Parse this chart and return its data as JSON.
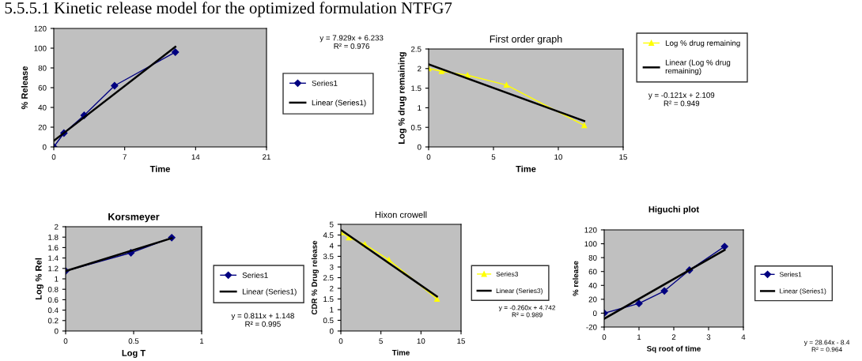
{
  "chart_data": [
    {
      "type": "line",
      "annotations": [
        "5.5.5.1 Kinetic release model for the optimized formulation NTFG7",
        "y = 7.929x + 6.233\nR² = 0.976"
      ],
      "xlabel": "Time",
      "ylabel": "% Release",
      "xlim": [
        0,
        21
      ],
      "xticks": [
        0,
        7,
        14,
        21
      ],
      "ylim": [
        0,
        120
      ],
      "yticks": [
        0,
        20,
        40,
        60,
        80,
        100,
        120
      ],
      "legend": "right",
      "grid": false,
      "series": [
        {
          "name": "Series1",
          "color": "#000080",
          "marker": "diamond",
          "x": [
            0,
            1,
            3,
            6,
            12
          ],
          "values": [
            0,
            14,
            32,
            62,
            96
          ]
        },
        {
          "name": "Linear (Series1)",
          "color": "#000000",
          "marker": "none",
          "x": [
            0,
            12
          ],
          "values": [
            6.2,
            101.4
          ]
        }
      ]
    },
    {
      "type": "line",
      "title": "First order graph",
      "annotations": [
        "y = -0.121x + 2.109\nR² = 0.949"
      ],
      "xlabel": "Time",
      "ylabel": "Log % drug remaining",
      "xlim": [
        0,
        15
      ],
      "xticks": [
        0,
        5,
        10,
        15
      ],
      "ylim": [
        0,
        2.5
      ],
      "yticks": [
        0,
        0.5,
        1,
        1.5,
        2,
        2.5
      ],
      "legend": "top right",
      "grid": false,
      "series": [
        {
          "name": "Log % drug remaining",
          "color": "#ffff00",
          "marker": "triangle",
          "x": [
            0,
            1,
            3,
            6,
            12
          ],
          "values": [
            2.0,
            1.93,
            1.83,
            1.58,
            0.55
          ]
        },
        {
          "name": "Linear (Log % drug\nremaining)",
          "color": "#000000",
          "marker": "none",
          "x": [
            0,
            12
          ],
          "values": [
            2.11,
            0.66
          ]
        }
      ]
    },
    {
      "type": "line",
      "title": "Korsmeyer",
      "annotations": [
        "y = 0.811x + 1.148\nR² = 0.995"
      ],
      "xlabel": "Log T",
      "ylabel": "Log % Rel",
      "xlim": [
        0,
        1
      ],
      "xticks": [
        0,
        0.5,
        1
      ],
      "ylim": [
        0,
        2
      ],
      "yticks": [
        0,
        0.2,
        0.4,
        0.6,
        0.8,
        1,
        1.2,
        1.4,
        1.6,
        1.8,
        2
      ],
      "legend": "right",
      "grid": false,
      "series": [
        {
          "name": "Series1",
          "color": "#000080",
          "marker": "diamond",
          "x": [
            0,
            0.48,
            0.78
          ],
          "values": [
            1.15,
            1.5,
            1.79
          ]
        },
        {
          "name": "Linear (Series1)",
          "color": "#000000",
          "marker": "none",
          "x": [
            0,
            0.78
          ],
          "values": [
            1.15,
            1.78
          ]
        }
      ]
    },
    {
      "type": "line",
      "title": "Hixon crowell",
      "annotations": [
        "y = -0.260x + 4.742\nR² = 0.989"
      ],
      "xlabel": "Time",
      "ylabel": "CDR % Drug release",
      "xlim": [
        0,
        15
      ],
      "xticks": [
        0,
        5,
        10,
        15
      ],
      "ylim": [
        0,
        5
      ],
      "yticks": [
        0,
        0.5,
        1,
        1.5,
        2,
        2.5,
        3,
        3.5,
        4,
        4.5,
        5
      ],
      "legend": "right",
      "grid": false,
      "series": [
        {
          "name": "Series3",
          "color": "#ffff00",
          "marker": "triangle",
          "x": [
            0,
            1,
            3,
            6,
            12
          ],
          "values": [
            4.62,
            4.38,
            4.06,
            3.33,
            1.5
          ]
        },
        {
          "name": "Linear (Series3)",
          "color": "#000000",
          "marker": "none",
          "x": [
            0,
            12
          ],
          "values": [
            4.74,
            1.62
          ]
        }
      ]
    },
    {
      "type": "line",
      "title": "Higuchi plot",
      "annotations": [
        "y = 28.64x - 8.4\nR² = 0.964"
      ],
      "xlabel": "Sq root of time",
      "ylabel": "% release",
      "xlim": [
        0,
        4
      ],
      "xticks": [
        0,
        1,
        2,
        3,
        4
      ],
      "ylim": [
        -20,
        120
      ],
      "yticks": [
        -20,
        0,
        20,
        40,
        60,
        80,
        100,
        120
      ],
      "legend": "right",
      "grid": false,
      "series": [
        {
          "name": "Series1",
          "color": "#000080",
          "marker": "diamond",
          "x": [
            0,
            1,
            1.73,
            2.45,
            3.46
          ],
          "values": [
            0,
            14,
            32,
            62,
            96
          ]
        },
        {
          "name": "Linear (Series1)",
          "color": "#000000",
          "marker": "none",
          "x": [
            0,
            3.46
          ],
          "values": [
            -8,
            91
          ]
        }
      ]
    }
  ]
}
